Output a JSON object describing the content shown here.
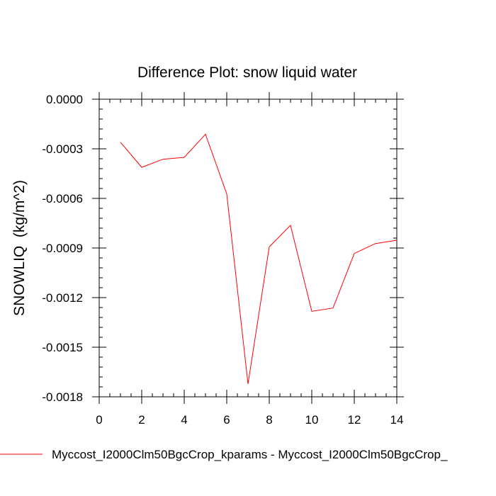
{
  "chart_data": {
    "type": "line",
    "title": "Difference Plot: snow liquid water",
    "xlabel": "",
    "ylabel": "SNOWLIQ  (kg/m^2)",
    "xlim": [
      0,
      14
    ],
    "ylim": [
      -0.0018,
      0.0
    ],
    "xticks": [
      0,
      2,
      4,
      6,
      8,
      10,
      12,
      14
    ],
    "xtick_labels": [
      "0",
      "2",
      "4",
      "6",
      "8",
      "10",
      "12",
      "14"
    ],
    "yticks": [
      0.0,
      -0.0003,
      -0.0006,
      -0.0009,
      -0.0012,
      -0.0015,
      -0.0018
    ],
    "ytick_labels": [
      "0.0000",
      "-0.0003",
      "-0.0006",
      "-0.0009",
      "-0.0012",
      "-0.0015",
      "-0.0018"
    ],
    "grid": false,
    "series": [
      {
        "name": "Myccost_I2000Clm50BgcCrop_kparams - Myccost_I2000Clm50BgcCrop_",
        "color": "#ff0000",
        "x": [
          1,
          2,
          3,
          4,
          5,
          6,
          7,
          8,
          9,
          10,
          11,
          12,
          13,
          14
        ],
        "values": [
          -0.00026,
          -0.000412,
          -0.000363,
          -0.000352,
          -0.000212,
          -0.000573,
          -0.001722,
          -0.000893,
          -0.000763,
          -0.001283,
          -0.001263,
          -0.000933,
          -0.000873,
          -0.000853
        ]
      }
    ],
    "legend_position": "bottom-left"
  }
}
